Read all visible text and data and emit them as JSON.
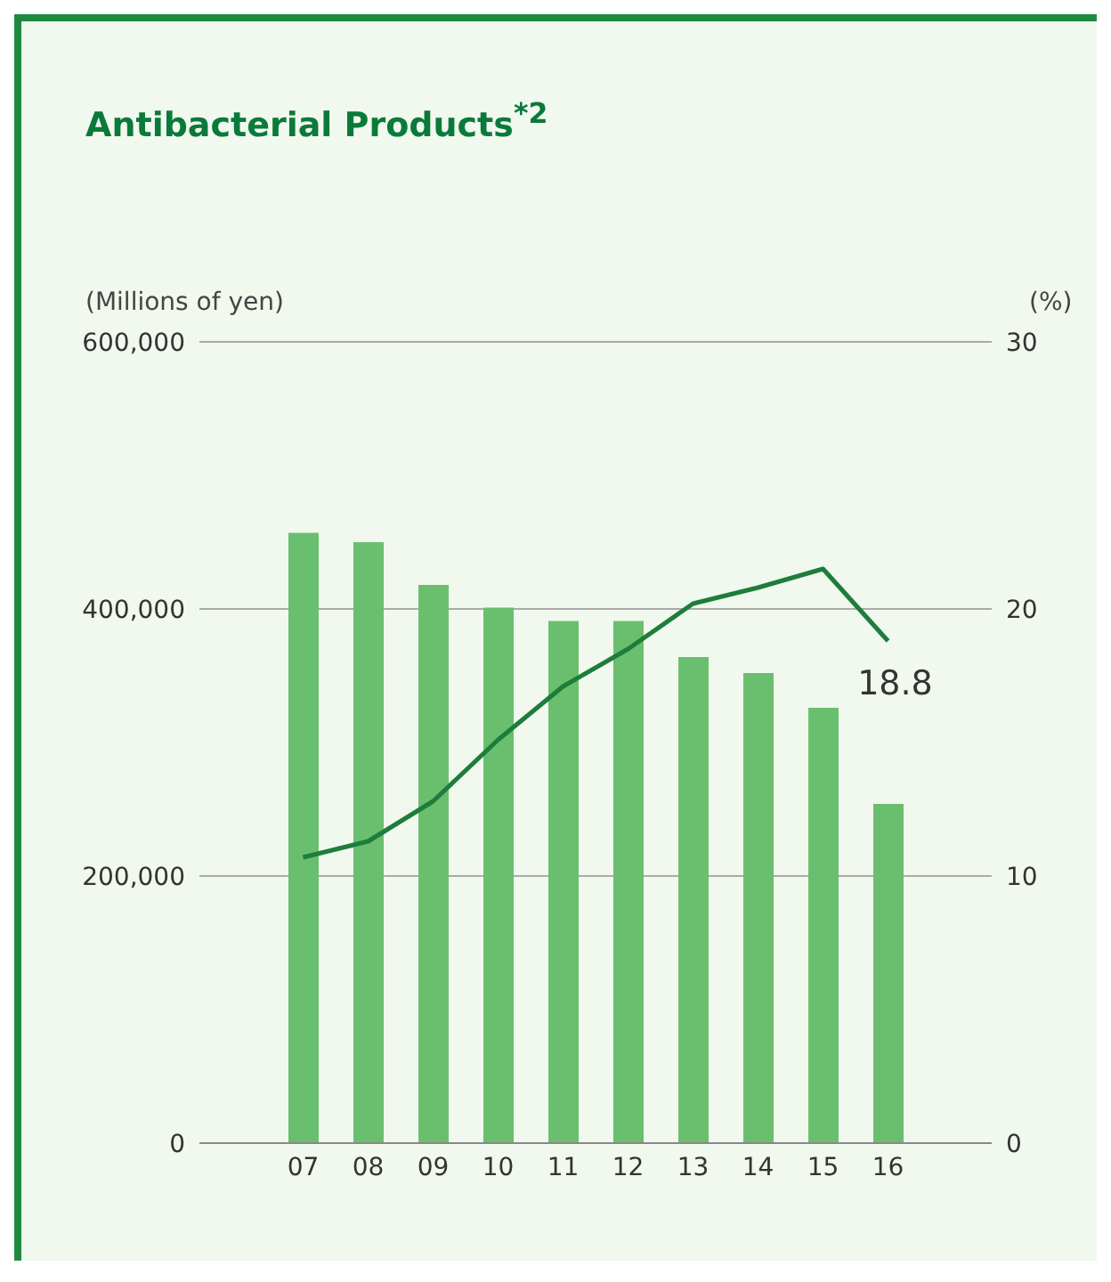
{
  "chart_data": {
    "type": "bar",
    "title": "Antibacterial Products$^{*2}$",
    "ylabel": "(Millions of yen)",
    "y2label": "(%)",
    "categories": [
      "07",
      "08",
      "09",
      "10",
      "11",
      "12",
      "13",
      "14",
      "15",
      "16"
    ],
    "series": [
      {
        "color": "#6abf6e",
        "values": [
          457000,
          450000,
          418000,
          401000,
          391000,
          391000,
          364000,
          352000,
          326000,
          254000
        ]
      },
      {
        "type": "line",
        "axis": "y2",
        "color": "#1e7d3a",
        "values": [
          10.7,
          11.3,
          12.8,
          15.1,
          17.1,
          18.5,
          20.2,
          20.8,
          21.5,
          18.8
        ],
        "value_labels": [
          null,
          null,
          null,
          null,
          null,
          null,
          null,
          null,
          null,
          "18.8"
        ]
      }
    ],
    "ylim": [
      0,
      600000
    ],
    "yticks": [
      {
        "value": 0,
        "label": "0"
      },
      {
        "value": 200000,
        "label": "200,000"
      },
      {
        "value": 400000,
        "label": "400,000"
      },
      {
        "value": 600000,
        "label": "600,000"
      }
    ],
    "y2lim": [
      0,
      30
    ],
    "y2ticks": [
      0,
      10,
      20,
      30
    ],
    "grid": "y",
    "marker": "none",
    "line_style": "solid"
  }
}
